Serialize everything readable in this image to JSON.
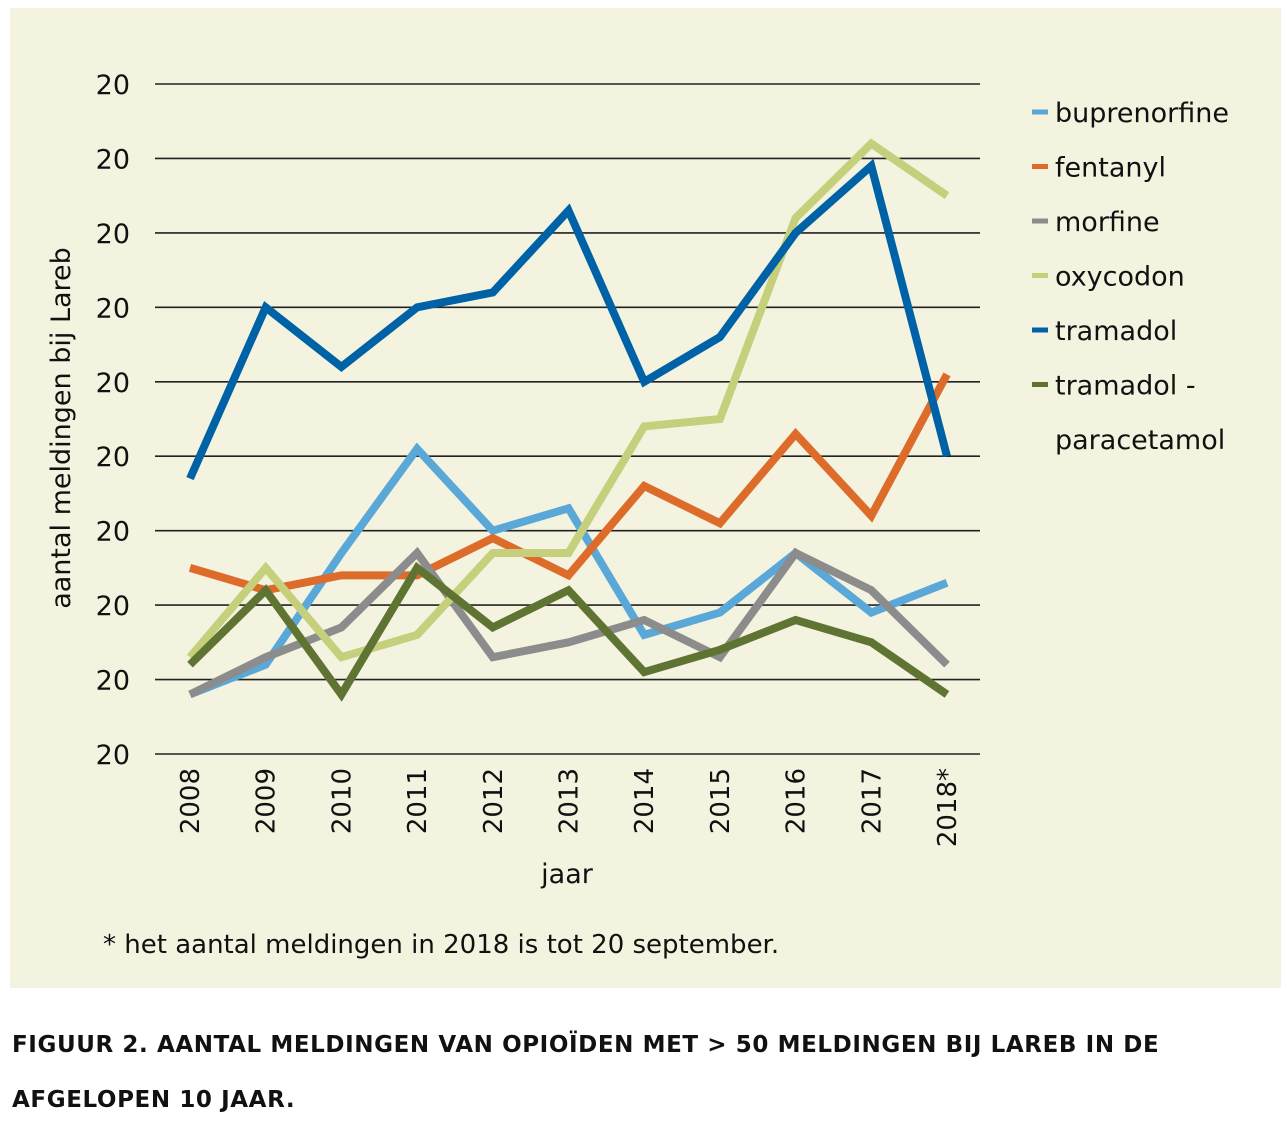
{
  "chart_data": {
    "type": "line",
    "xlabel": "jaar",
    "ylabel": "aantal meldingen bij Lareb",
    "categories": [
      "2008",
      "2009",
      "2010",
      "2011",
      "2012",
      "2013",
      "2014",
      "2015",
      "2016",
      "2017",
      "2018*"
    ],
    "y_tick_labels": [
      "20",
      "20",
      "20",
      "20",
      "20",
      "20",
      "20",
      "20",
      "20",
      "20"
    ],
    "ylim": [
      0,
      9
    ],
    "grid": true,
    "legend_position": "right",
    "series": [
      {
        "name": "buprenorfine",
        "color": "#5aa8d8",
        "values": [
          0.8,
          1.2,
          2.7,
          4.1,
          3.0,
          3.3,
          1.6,
          1.9,
          2.7,
          1.9,
          2.3
        ]
      },
      {
        "name": "fentanyl",
        "color": "#dd6b2a",
        "values": [
          2.5,
          2.2,
          2.4,
          2.4,
          2.9,
          2.4,
          3.6,
          3.1,
          4.3,
          3.2,
          5.1
        ]
      },
      {
        "name": "morfine",
        "color": "#8c8c8c",
        "values": [
          0.8,
          1.3,
          1.7,
          2.7,
          1.3,
          1.5,
          1.8,
          1.3,
          2.7,
          2.2,
          1.2
        ]
      },
      {
        "name": "oxycodon",
        "color": "#c6cf7c",
        "values": [
          1.3,
          2.5,
          1.3,
          1.6,
          2.7,
          2.7,
          4.4,
          4.5,
          7.2,
          8.2,
          7.5
        ]
      },
      {
        "name": "tramadol",
        "color": "#0062a6",
        "values": [
          3.7,
          6.0,
          5.2,
          6.0,
          6.2,
          7.3,
          5.0,
          5.6,
          7.0,
          7.9,
          4.0
        ]
      },
      {
        "name": "tramadol - paracetamol",
        "color": "#5f7433",
        "values": [
          1.2,
          2.2,
          0.8,
          2.5,
          1.7,
          2.2,
          1.1,
          1.4,
          1.8,
          1.5,
          0.8
        ]
      }
    ],
    "legend_lines": [
      "buprenorfine",
      "fentanyl",
      "morfine",
      "oxycodon",
      "tramadol",
      "tramadol -",
      "paracetamol"
    ]
  },
  "footnote": "* het aantal meldingen in 2018 is tot 20 september.",
  "caption": "FIGUUR 2. AANTAL MELDINGEN VAN OPIOÏDEN MET > 50 MELDINGEN BIJ LAREB IN DE AFGELOPEN 10 JAAR."
}
